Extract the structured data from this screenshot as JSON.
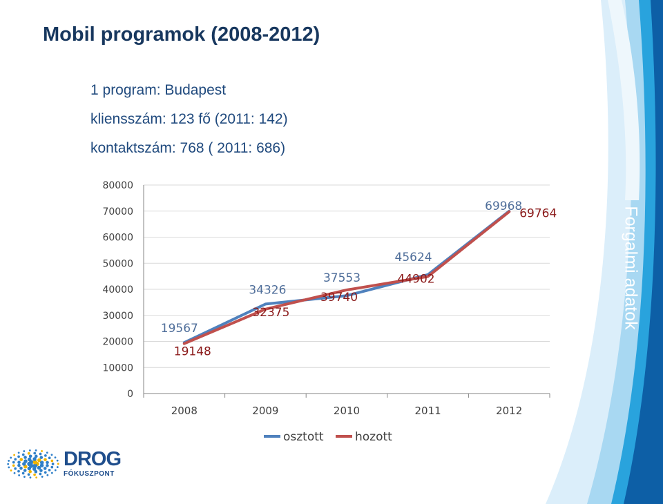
{
  "slide": {
    "title": "Mobil programok (2008-2012)",
    "lines": [
      "1 program: Budapest",
      "kliensszám: 123 fő (2011: 142)",
      "kontaktszám:  768 ( 2011: 686)"
    ],
    "side_label": "Forgalmi adatok",
    "colors": {
      "title": "#17375e",
      "text": "#1f497d",
      "band_dark": "#0d5fa6",
      "band_light": "#cfe9f8"
    }
  },
  "logo": {
    "main": "DROG",
    "sub": "FÓKUSZPONT",
    "icon": "dot-burst-icon"
  },
  "chart_data": {
    "type": "line",
    "categories": [
      "2008",
      "2009",
      "2010",
      "2011",
      "2012"
    ],
    "ylim": [
      0,
      80000
    ],
    "yticks": [
      "0",
      "10000",
      "20000",
      "30000",
      "40000",
      "50000",
      "60000",
      "70000",
      "80000"
    ],
    "grid": true,
    "legend_position": "bottom",
    "series": [
      {
        "name": "osztott",
        "color": "#4f81bd",
        "values": [
          19567,
          34326,
          37553,
          45624,
          69968
        ],
        "labels": [
          "19567",
          "34326",
          "37553",
          "45624",
          "69968"
        ]
      },
      {
        "name": "hozott",
        "color": "#c0504d",
        "values": [
          19148,
          32375,
          39740,
          44902,
          69764
        ],
        "labels": [
          "19148",
          "32375",
          "39740",
          "44902",
          "69764"
        ]
      }
    ]
  }
}
